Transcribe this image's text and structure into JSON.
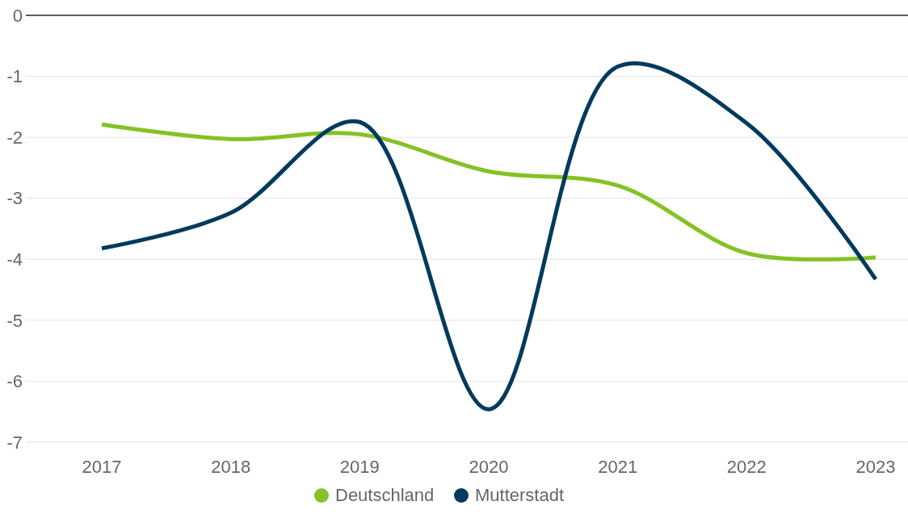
{
  "chart_data": {
    "type": "line",
    "categories": [
      "2017",
      "2018",
      "2019",
      "2020",
      "2021",
      "2022",
      "2023"
    ],
    "series": [
      {
        "name": "Deutschland",
        "color": "#84c225",
        "values": [
          -1.79,
          -2.03,
          -1.95,
          -2.56,
          -2.79,
          -3.9,
          -3.97
        ]
      },
      {
        "name": "Mutterstadt",
        "color": "#003a5d",
        "values": [
          -3.82,
          -3.24,
          -1.75,
          -6.46,
          -0.84,
          -1.77,
          -4.33
        ]
      }
    ],
    "ylim": [
      -7,
      0
    ],
    "yticks": [
      -7,
      -6,
      -5,
      -4,
      -3,
      -2,
      -1,
      0
    ],
    "grid": "y",
    "legend": "bottom",
    "marker": "none",
    "line_style": "solid"
  }
}
